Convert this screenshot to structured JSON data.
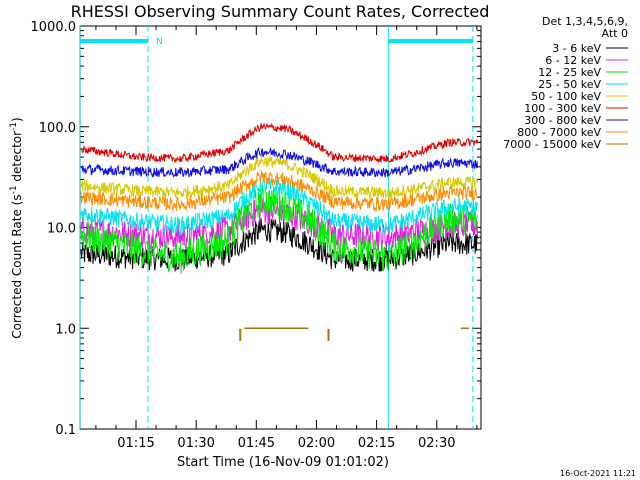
{
  "chart_data": {
    "type": "line",
    "title": "RHESSI Observing Summary Count Rates, Corrected",
    "xlabel": "Start Time (16-Nov-09 01:01:02)",
    "ylabel": "Corrected Count Rate (s",
    "ylabel_sup": "-1",
    "ylabel_mid": " detector",
    "ylabel_end": ")",
    "y_scale": "log",
    "ylim": [
      0.1,
      1000
    ],
    "y_ticks": [
      {
        "value": 0.1,
        "label": "0.1"
      },
      {
        "value": 1,
        "label": "1.0"
      },
      {
        "value": 10,
        "label": "10.0"
      },
      {
        "value": 100,
        "label": "100.0"
      },
      {
        "value": 1000,
        "label": "1000.0"
      }
    ],
    "xlim": [
      "01:01:02",
      "02:41:02"
    ],
    "x_ticks": [
      "01:15",
      "01:30",
      "01:45",
      "02:00",
      "02:15",
      "02:30"
    ],
    "detector_note": [
      "Det 1,3,4,5,6,9,",
      "Att 0"
    ],
    "flag_label": "N",
    "flag_color": "#00e5ee",
    "timestamp": "16-Oct-2021 11:21",
    "series": [
      {
        "name": "3 - 6 keV",
        "color": "#000000"
      },
      {
        "name": "6 - 12 keV",
        "color": "#e020e0"
      },
      {
        "name": "12 - 25 keV",
        "color": "#00ee00"
      },
      {
        "name": "25 - 50 keV",
        "color": "#00e5ee"
      },
      {
        "name": "50 - 100 keV",
        "color": "#d8c800"
      },
      {
        "name": "100 - 300 keV",
        "color": "#e00000"
      },
      {
        "name": "300 - 800 keV",
        "color": "#1010e0"
      },
      {
        "name": "800 - 7000 keV",
        "color": "#ff8c00"
      },
      {
        "name": "7000 - 15000 keV",
        "color": "#a07800"
      }
    ],
    "profiles": [
      {
        "series": "3 - 6 keV",
        "x": [
          "01:01",
          "01:15",
          "01:26",
          "01:38",
          "01:46",
          "01:52",
          "02:04",
          "02:18",
          "02:24",
          "02:33",
          "02:40"
        ],
        "y": [
          5.5,
          5.0,
          4.8,
          5.5,
          9.5,
          9.0,
          4.8,
          4.8,
          5.5,
          7.0,
          6.8
        ]
      },
      {
        "series": "6 - 12 keV",
        "x": [
          "01:01",
          "01:15",
          "01:26",
          "01:38",
          "01:46",
          "01:52",
          "02:04",
          "02:18",
          "02:24",
          "02:33",
          "02:40"
        ],
        "y": [
          9.5,
          8.5,
          8.0,
          9.5,
          15,
          14,
          8.5,
          8.0,
          9.0,
          10.5,
          10.5
        ]
      },
      {
        "series": "12 - 25 keV",
        "x": [
          "01:01",
          "01:15",
          "01:26",
          "01:38",
          "01:46",
          "01:52",
          "02:04",
          "02:18",
          "02:24",
          "02:33",
          "02:40"
        ],
        "y": [
          8.5,
          6.0,
          5.0,
          7.5,
          19,
          17,
          6.5,
          5.0,
          7.0,
          12,
          12
        ]
      },
      {
        "series": "25 - 50 keV",
        "x": [
          "01:01",
          "01:15",
          "01:26",
          "01:38",
          "01:46",
          "01:52",
          "02:04",
          "02:18",
          "02:24",
          "02:33",
          "02:40"
        ],
        "y": [
          14,
          11.5,
          10.5,
          13,
          26,
          24,
          11.5,
          10.5,
          12.5,
          16,
          16
        ]
      },
      {
        "series": "50 - 100 keV",
        "x": [
          "01:01",
          "01:15",
          "01:26",
          "01:38",
          "01:46",
          "01:52",
          "02:04",
          "02:18",
          "02:24",
          "02:33",
          "02:40"
        ],
        "y": [
          26,
          23,
          22,
          26,
          46,
          43,
          23,
          22,
          24,
          28,
          28
        ]
      },
      {
        "series": "100 - 300 keV",
        "x": [
          "01:01",
          "01:15",
          "01:26",
          "01:38",
          "01:46",
          "01:52",
          "02:04",
          "02:18",
          "02:24",
          "02:33",
          "02:40"
        ],
        "y": [
          60,
          50,
          48,
          58,
          100,
          96,
          50,
          48,
          55,
          70,
          70
        ]
      },
      {
        "series": "300 - 800 keV",
        "x": [
          "01:01",
          "01:15",
          "01:26",
          "01:38",
          "01:46",
          "01:52",
          "02:04",
          "02:18",
          "02:24",
          "02:33",
          "02:40"
        ],
        "y": [
          38,
          36,
          35,
          38,
          57,
          54,
          36,
          35,
          38,
          44,
          43
        ]
      },
      {
        "series": "800 - 7000 keV",
        "x": [
          "01:01",
          "01:15",
          "01:26",
          "01:38",
          "01:46",
          "01:52",
          "02:04",
          "02:18",
          "02:24",
          "02:33",
          "02:40"
        ],
        "y": [
          20,
          18,
          17,
          20,
          32,
          30,
          18,
          17,
          19,
          22,
          22
        ]
      }
    ],
    "segments_7000_15000_keV": [
      {
        "x": [
          "01:42",
          "01:58"
        ],
        "y": 1.0
      },
      {
        "x": [
          "02:36",
          "02:38"
        ],
        "y": 1.0
      }
    ],
    "spikes_7000_15000_keV": [
      {
        "x": "01:41",
        "y": 0.75
      },
      {
        "x": "02:03",
        "y": 0.75
      }
    ],
    "vertical_markers": [
      {
        "x": "01:01",
        "style": "solid"
      },
      {
        "x": "01:18",
        "style": "dashed"
      },
      {
        "x": "02:18",
        "style": "solid"
      },
      {
        "x": "02:39",
        "style": "dashed"
      }
    ],
    "flag_spans": [
      [
        "01:01",
        "01:18"
      ],
      [
        "02:18",
        "02:39"
      ]
    ]
  }
}
